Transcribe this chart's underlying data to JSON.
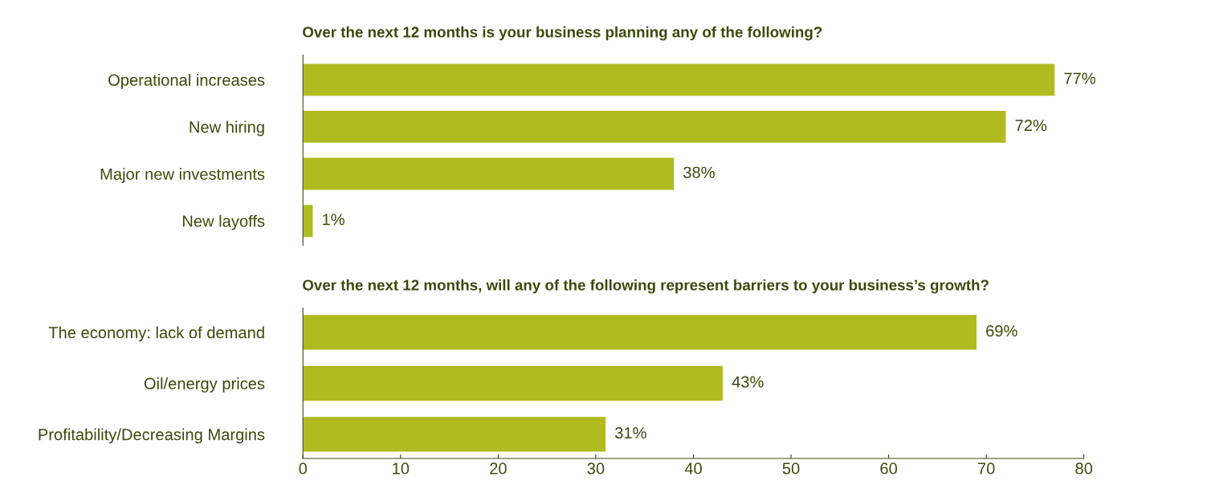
{
  "chart_data": [
    {
      "type": "bar",
      "orientation": "horizontal",
      "title": "Over the next 12 months is your business planning any of the following?",
      "categories": [
        "Operational increases",
        "New hiring",
        "Major new investments",
        "New layoffs"
      ],
      "values": [
        77,
        72,
        38,
        1
      ],
      "color": "#afbb1f",
      "data_labels": true,
      "value_labels": [
        "77%",
        "72%",
        "38%",
        "1%"
      ],
      "xlim": [
        0,
        80
      ],
      "tick_labels": "y",
      "grid": false,
      "legend": false
    },
    {
      "type": "bar",
      "orientation": "horizontal",
      "title": "Over the next 12 months, will any of the following represent barriers to your business’s growth?",
      "categories": [
        "The economy: lack of demand",
        "Oil/energy prices",
        "Profitability/Decreasing Margins"
      ],
      "values": [
        69,
        43,
        31
      ],
      "color": "#afbb1f",
      "data_labels": true,
      "value_labels": [
        "69%",
        "43%",
        "31%"
      ],
      "xlim": [
        0,
        80
      ],
      "xticks": [
        0,
        10,
        20,
        30,
        40,
        50,
        60,
        70,
        80
      ],
      "grid": false,
      "legend": false
    }
  ]
}
